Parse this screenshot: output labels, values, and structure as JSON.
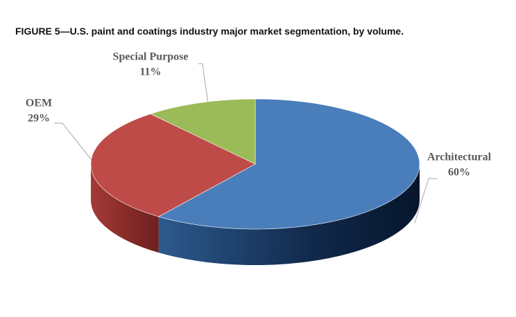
{
  "chart_data": {
    "type": "pie3d",
    "title": "FIGURE 5—U.S. paint and coatings industry major market segmentation, by volume.",
    "categories": [
      "Architectural",
      "OEM",
      "Special Purpose"
    ],
    "values": [
      60,
      29,
      11
    ],
    "value_labels": [
      "60%",
      "29%",
      "11%"
    ],
    "colors": [
      "#4a7ebb",
      "#be4b48",
      "#9bbb59"
    ]
  }
}
